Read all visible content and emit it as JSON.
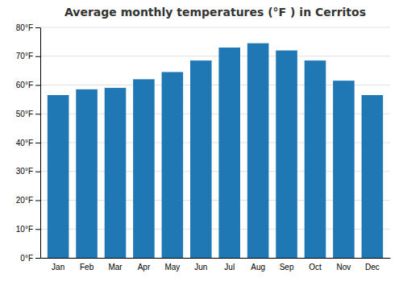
{
  "chart_data": {
    "type": "bar",
    "title": "Average monthly temperatures (°F ) in Cerritos",
    "categories": [
      "Jan",
      "Feb",
      "Mar",
      "Apr",
      "May",
      "Jun",
      "Jul",
      "Aug",
      "Sep",
      "Oct",
      "Nov",
      "Dec"
    ],
    "values": [
      56.5,
      58.5,
      59.0,
      62.0,
      64.5,
      68.5,
      73.0,
      74.5,
      72.0,
      68.5,
      61.5,
      56.5
    ],
    "ylim": [
      0,
      80
    ],
    "yticks": [
      {
        "value": 0,
        "label": "0°F"
      },
      {
        "value": 10,
        "label": "10°F"
      },
      {
        "value": 20,
        "label": "20°F"
      },
      {
        "value": 30,
        "label": "30°F"
      },
      {
        "value": 40,
        "label": "40°F"
      },
      {
        "value": 50,
        "label": "50°F"
      },
      {
        "value": 60,
        "label": "60°F"
      },
      {
        "value": 70,
        "label": "70°F"
      },
      {
        "value": 80,
        "label": "80°F"
      }
    ],
    "grid": true
  }
}
